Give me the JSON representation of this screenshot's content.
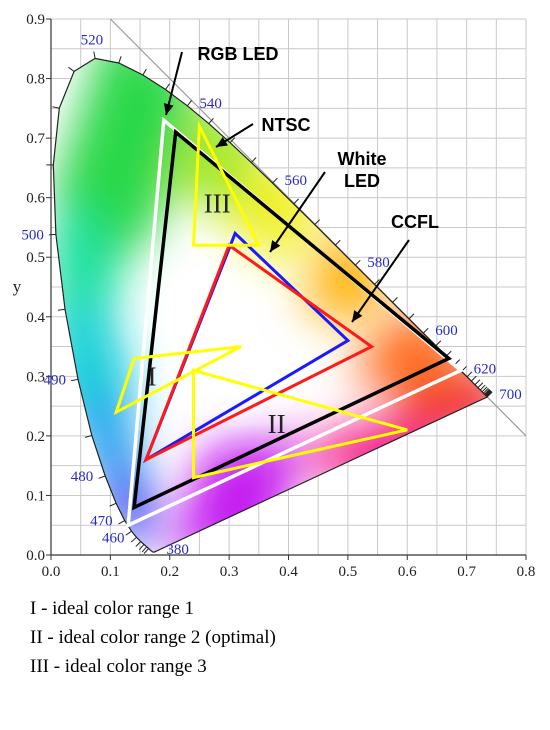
{
  "chart_data": {
    "type": "scatter",
    "title": "",
    "xlabel": "",
    "ylabel": "y",
    "xlim": [
      0,
      0.8
    ],
    "ylim": [
      0,
      0.9
    ],
    "grid": true,
    "x_ticks": [
      "0.0",
      "0.1",
      "0.2",
      "0.3",
      "0.4",
      "0.5",
      "0.6",
      "0.7",
      "0.8"
    ],
    "y_ticks": [
      "0.0",
      "0.1",
      "0.2",
      "0.3",
      "0.4",
      "0.5",
      "0.6",
      "0.7",
      "0.8",
      "0.9"
    ],
    "spectral_locus": [
      [
        0.1741,
        0.005
      ],
      [
        0.174,
        0.005
      ],
      [
        0.1738,
        0.0049
      ],
      [
        0.1736,
        0.0049
      ],
      [
        0.1733,
        0.0048
      ],
      [
        0.173,
        0.0048
      ],
      [
        0.1726,
        0.0048
      ],
      [
        0.1721,
        0.0048
      ],
      [
        0.1714,
        0.0051
      ],
      [
        0.1703,
        0.0058
      ],
      [
        0.1689,
        0.0069
      ],
      [
        0.1669,
        0.0086
      ],
      [
        0.1644,
        0.0109
      ],
      [
        0.1611,
        0.0138
      ],
      [
        0.1566,
        0.0177
      ],
      [
        0.151,
        0.0227
      ],
      [
        0.144,
        0.0297
      ],
      [
        0.1355,
        0.0399
      ],
      [
        0.1241,
        0.0578
      ],
      [
        0.1096,
        0.0868
      ],
      [
        0.0913,
        0.1327
      ],
      [
        0.0687,
        0.2007
      ],
      [
        0.0454,
        0.295
      ],
      [
        0.0235,
        0.4127
      ],
      [
        0.0082,
        0.5384
      ],
      [
        0.0039,
        0.6548
      ],
      [
        0.0139,
        0.7502
      ],
      [
        0.0389,
        0.812
      ],
      [
        0.0743,
        0.8338
      ],
      [
        0.1142,
        0.8262
      ],
      [
        0.1547,
        0.8059
      ],
      [
        0.1929,
        0.7816
      ],
      [
        0.2296,
        0.7543
      ],
      [
        0.2658,
        0.7243
      ],
      [
        0.3016,
        0.6923
      ],
      [
        0.3373,
        0.6589
      ],
      [
        0.3731,
        0.6245
      ],
      [
        0.4087,
        0.5896
      ],
      [
        0.4441,
        0.5547
      ],
      [
        0.4788,
        0.5202
      ],
      [
        0.5125,
        0.4866
      ],
      [
        0.5448,
        0.4544
      ],
      [
        0.5752,
        0.4242
      ],
      [
        0.6029,
        0.3965
      ],
      [
        0.627,
        0.3725
      ],
      [
        0.6482,
        0.3514
      ],
      [
        0.6658,
        0.334
      ],
      [
        0.6801,
        0.3197
      ],
      [
        0.6915,
        0.3083
      ],
      [
        0.7006,
        0.2993
      ],
      [
        0.7079,
        0.292
      ],
      [
        0.714,
        0.2859
      ],
      [
        0.719,
        0.2809
      ],
      [
        0.723,
        0.277
      ],
      [
        0.726,
        0.274
      ],
      [
        0.7283,
        0.2717
      ],
      [
        0.73,
        0.27
      ],
      [
        0.7311,
        0.2689
      ],
      [
        0.732,
        0.268
      ],
      [
        0.7327,
        0.2673
      ],
      [
        0.7334,
        0.2666
      ],
      [
        0.734,
        0.266
      ],
      [
        0.7344,
        0.2656
      ],
      [
        0.7346,
        0.2654
      ],
      [
        0.7347,
        0.2653
      ]
    ],
    "wavelength_labels": [
      {
        "label": "380",
        "x": 0.1741,
        "y": 0.005,
        "pos": "right"
      },
      {
        "label": "460",
        "x": 0.144,
        "y": 0.0297,
        "pos": "left"
      },
      {
        "label": "470",
        "x": 0.1241,
        "y": 0.0578,
        "pos": "left"
      },
      {
        "label": "480",
        "x": 0.0913,
        "y": 0.1327,
        "pos": "left"
      },
      {
        "label": "490",
        "x": 0.0454,
        "y": 0.295,
        "pos": "left"
      },
      {
        "label": "500",
        "x": 0.0082,
        "y": 0.5384,
        "pos": "left"
      },
      {
        "label": "520",
        "x": 0.0743,
        "y": 0.8338,
        "pos": "top"
      },
      {
        "label": "540",
        "x": 0.2296,
        "y": 0.7543,
        "pos": "right"
      },
      {
        "label": "560",
        "x": 0.3731,
        "y": 0.6245,
        "pos": "right"
      },
      {
        "label": "580",
        "x": 0.5125,
        "y": 0.4866,
        "pos": "right"
      },
      {
        "label": "600",
        "x": 0.627,
        "y": 0.3725,
        "pos": "right"
      },
      {
        "label": "620",
        "x": 0.6915,
        "y": 0.3083,
        "pos": "right"
      },
      {
        "label": "700",
        "x": 0.7347,
        "y": 0.2653,
        "pos": "right"
      }
    ],
    "series": [
      {
        "name": "RGB LED",
        "color": "#ffffff",
        "points": [
          [
            0.69,
            0.31
          ],
          [
            0.19,
            0.73
          ],
          [
            0.13,
            0.05
          ]
        ]
      },
      {
        "name": "NTSC",
        "color": "#000000",
        "points": [
          [
            0.67,
            0.33
          ],
          [
            0.21,
            0.71
          ],
          [
            0.14,
            0.08
          ]
        ]
      },
      {
        "name": "White LED",
        "color": "#1a1aff",
        "points": [
          [
            0.5,
            0.36
          ],
          [
            0.31,
            0.54
          ],
          [
            0.16,
            0.16
          ]
        ]
      },
      {
        "name": "CCFL",
        "color": "#ff1a1a",
        "points": [
          [
            0.54,
            0.35
          ],
          [
            0.3,
            0.52
          ],
          [
            0.16,
            0.16
          ]
        ]
      },
      {
        "name": "I",
        "color": "#ffff00",
        "points": [
          [
            0.11,
            0.24
          ],
          [
            0.32,
            0.35
          ],
          [
            0.14,
            0.33
          ]
        ]
      },
      {
        "name": "II",
        "color": "#ffff00",
        "points": [
          [
            0.6,
            0.21
          ],
          [
            0.24,
            0.31
          ],
          [
            0.24,
            0.13
          ]
        ]
      },
      {
        "name": "III",
        "color": "#ffff00",
        "points": [
          [
            0.25,
            0.72
          ],
          [
            0.35,
            0.52
          ],
          [
            0.24,
            0.52
          ]
        ]
      }
    ],
    "region_labels": [
      {
        "text": "I",
        "x": 0.17,
        "y": 0.3
      },
      {
        "text": "II",
        "x": 0.38,
        "y": 0.22
      },
      {
        "text": "III",
        "x": 0.28,
        "y": 0.59
      }
    ],
    "annotations": [
      {
        "text": "RGB LED",
        "lines": [
          "RGB LED"
        ]
      },
      {
        "text": "NTSC",
        "lines": [
          "NTSC"
        ]
      },
      {
        "text": "White LED",
        "lines": [
          "White",
          "LED"
        ]
      },
      {
        "text": "CCFL",
        "lines": [
          "CCFL"
        ]
      }
    ]
  },
  "legend": [
    "I - ideal color range 1",
    "II - ideal color range 2 (optimal)",
    "III - ideal color range 3"
  ]
}
